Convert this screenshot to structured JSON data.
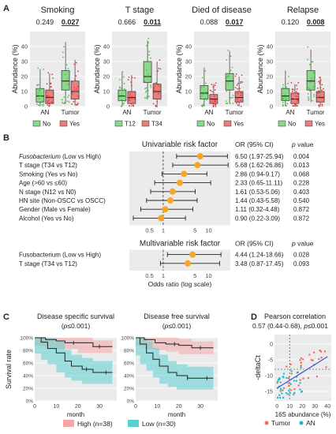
{
  "panel_labels": {
    "A": "A",
    "B": "B",
    "C": "C",
    "D": "D"
  },
  "colors": {
    "no": "#4CC44C",
    "yes": "#E03A3A",
    "orange": "#F5A623",
    "high": "#F4A6A6",
    "low": "#5CCFD0",
    "tumor": "#F06A5A",
    "an": "#1FB8C3",
    "fit": "#4655D8",
    "panel_bg": "#EBEBEB"
  },
  "box_panels": [
    {
      "title": "Smoking",
      "p_an": "0.249",
      "p_tumor": "0.027",
      "legend": [
        "No",
        "Yes"
      ],
      "groups": {
        "an_no": [
          0,
          3,
          7,
          12,
          25
        ],
        "an_yes": [
          0,
          2,
          6,
          11,
          22
        ],
        "tumor_no": [
          2,
          11,
          17,
          24,
          43
        ],
        "tumor_yes": [
          1,
          5,
          10,
          17,
          31
        ]
      }
    },
    {
      "title": "T stage",
      "p_an": "0.666",
      "p_tumor": "0.011",
      "legend": [
        "T12",
        "T34"
      ],
      "groups": {
        "an_no": [
          0,
          4,
          7,
          11,
          22
        ],
        "an_yes": [
          0,
          2,
          6,
          10,
          21
        ],
        "tumor_no": [
          5,
          16,
          20,
          30,
          44
        ],
        "tumor_yes": [
          0,
          5,
          10,
          15,
          30
        ]
      }
    },
    {
      "title": "Died of disease",
      "p_an": "0.088",
      "p_tumor": "0.017",
      "legend": [
        "No",
        "Yes"
      ],
      "groups": {
        "an_no": [
          0,
          5,
          9,
          14,
          26
        ],
        "an_yes": [
          0,
          2,
          5,
          8,
          15
        ],
        "tumor_no": [
          2,
          11,
          17,
          22,
          37
        ],
        "tumor_yes": [
          0,
          3,
          6,
          10,
          20
        ]
      }
    },
    {
      "title": "Relapse",
      "p_an": "0.120",
      "p_tumor": "0.008",
      "legend": [
        "No",
        "Yes"
      ],
      "groups": {
        "an_no": [
          0,
          4,
          7,
          12,
          24
        ],
        "an_yes": [
          0,
          2,
          5,
          9,
          15
        ],
        "tumor_no": [
          3,
          11,
          17,
          24,
          38
        ],
        "tumor_yes": [
          0,
          3,
          6,
          10,
          20
        ]
      }
    }
  ],
  "box_axis": {
    "ylabel": "Abundance (%)",
    "yticks": [
      0,
      10,
      20,
      30,
      40
    ],
    "ylim": [
      0,
      50
    ],
    "xcats": [
      "AN",
      "Tumor"
    ]
  },
  "forest": {
    "uni_title": "Univariable risk factor",
    "multi_title": "Multivariable risk factor",
    "col_or": "OR (95% CI)",
    "col_p_italic": "p",
    "col_p_rest": " value",
    "xticks": [
      "0.5",
      "1",
      "5",
      "10"
    ],
    "xlabel": "Odds ratio (log scale)",
    "uni": [
      {
        "label_italic": "Fusobacterium",
        "label_rest": " (Low vs High)",
        "or": 6.5,
        "lo": 1.97,
        "hi": 25.94,
        "or_text": "6.50 (1.97-25.94)",
        "p": "0.004"
      },
      {
        "label_italic": "",
        "label_rest": "T stage (T34 vs T12)",
        "or": 5.68,
        "lo": 1.62,
        "hi": 26.86,
        "or_text": "5.68 (1.62-26.86)",
        "p": "0.013"
      },
      {
        "label_italic": "",
        "label_rest": "Smoking (Yes vs No)",
        "or": 2.86,
        "lo": 0.94,
        "hi": 9.17,
        "or_text": "2.86 (0.94-9.17)",
        "p": "0.068"
      },
      {
        "label_italic": "",
        "label_rest": "Age (>60 vs ≤60)",
        "or": 2.33,
        "lo": 0.65,
        "hi": 11.11,
        "or_text": "2.33 (0.65-11.11)",
        "p": "0.228"
      },
      {
        "label_italic": "",
        "label_rest": "N stage (N12 vs N0)",
        "or": 1.61,
        "lo": 0.53,
        "hi": 5.06,
        "or_text": "1.61 (0.53-5.06)",
        "p": "0.403"
      },
      {
        "label_italic": "",
        "label_rest": "HN site (Non-OSCC vs OSCC)",
        "or": 1.44,
        "lo": 0.43,
        "hi": 5.58,
        "or_text": "1.44 (0.43-5.58)",
        "p": "0.540"
      },
      {
        "label_italic": "",
        "label_rest": "Gender (Male vs Female)",
        "or": 1.11,
        "lo": 0.32,
        "hi": 4.48,
        "or_text": "1.11 (0.32-4.48)",
        "p": "0.872"
      },
      {
        "label_italic": "",
        "label_rest": "Alcohol (Yes vs No)",
        "or": 0.9,
        "lo": 0.22,
        "hi": 3.09,
        "or_text": "0.90 (0.22-3.09)",
        "p": "0.872"
      }
    ],
    "multi": [
      {
        "label": "Fusobacterium (Low vs High)",
        "or": 4.44,
        "lo": 1.24,
        "hi": 18.66,
        "or_text": "4.44 (1.24-18.66)",
        "p": "0.028"
      },
      {
        "label": "T stage (T34 vs T12)",
        "or": 3.48,
        "lo": 0.87,
        "hi": 17.45,
        "or_text": "3.48 (0.87-17.45)",
        "p": "0.093"
      }
    ]
  },
  "survival": {
    "panels": [
      {
        "title": "Disease specific survival",
        "p_italic": "p",
        "p_rest": "≤0.001",
        "high": [
          [
            0,
            1.0
          ],
          [
            5,
            0.97
          ],
          [
            10,
            0.95
          ],
          [
            14,
            0.92
          ],
          [
            20,
            0.92
          ],
          [
            27,
            0.86
          ],
          [
            36,
            0.86
          ]
        ],
        "low": [
          [
            0,
            1.0
          ],
          [
            3,
            0.93
          ],
          [
            6,
            0.83
          ],
          [
            10,
            0.76
          ],
          [
            14,
            0.63
          ],
          [
            17,
            0.55
          ],
          [
            22,
            0.5
          ],
          [
            27,
            0.45
          ],
          [
            36,
            0.45
          ]
        ]
      },
      {
        "title": "Disease free survival",
        "p_italic": "p",
        "p_rest": "≤0.001",
        "high": [
          [
            0,
            1.0
          ],
          [
            4,
            0.97
          ],
          [
            9,
            0.92
          ],
          [
            14,
            0.9
          ],
          [
            20,
            0.88
          ],
          [
            26,
            0.84
          ],
          [
            36,
            0.84
          ]
        ],
        "low": [
          [
            0,
            1.0
          ],
          [
            2,
            0.9
          ],
          [
            5,
            0.76
          ],
          [
            8,
            0.66
          ],
          [
            11,
            0.55
          ],
          [
            15,
            0.45
          ],
          [
            19,
            0.4
          ],
          [
            24,
            0.36
          ],
          [
            36,
            0.36
          ]
        ]
      }
    ],
    "ylabel": "Survival rate",
    "xlabel": "month",
    "yticks": [
      "0%",
      "20%",
      "40%",
      "60%",
      "80%",
      "100%"
    ],
    "xticks": [
      "0",
      "10",
      "20",
      "30"
    ],
    "legend_high": "High (n=38)",
    "legend_low": "Low (n=30)"
  },
  "correlation": {
    "title": "Pearson correlation",
    "subtitle_pre": "0.57 (0.44-0.68), ",
    "subtitle_p": "p",
    "subtitle_post": "≤0.001",
    "ylabel": "-deltaCt",
    "xlabel": "16S abundance (%)",
    "yticks": [
      "0",
      "-5",
      "-10",
      "-15"
    ],
    "xticks": [
      "0",
      "10",
      "20",
      "30",
      "40"
    ],
    "legend": [
      "Tumor",
      "AN"
    ]
  },
  "chart_data": [
    {
      "type": "bar",
      "title": "Smoking",
      "ylabel": "Abundance (%)",
      "categories": [
        "AN",
        "Tumor"
      ],
      "series": [
        {
          "name": "No",
          "values": [
            7,
            17
          ]
        },
        {
          "name": "Yes",
          "values": [
            6,
            10
          ]
        }
      ],
      "ylim": [
        0,
        50
      ]
    },
    {
      "type": "bar",
      "title": "T stage",
      "ylabel": "Abundance (%)",
      "categories": [
        "AN",
        "Tumor"
      ],
      "series": [
        {
          "name": "T12",
          "values": [
            7,
            20
          ]
        },
        {
          "name": "T34",
          "values": [
            6,
            10
          ]
        }
      ],
      "ylim": [
        0,
        50
      ]
    },
    {
      "type": "bar",
      "title": "Died of disease",
      "ylabel": "Abundance (%)",
      "categories": [
        "AN",
        "Tumor"
      ],
      "series": [
        {
          "name": "No",
          "values": [
            9,
            17
          ]
        },
        {
          "name": "Yes",
          "values": [
            5,
            6
          ]
        }
      ],
      "ylim": [
        0,
        50
      ]
    },
    {
      "type": "bar",
      "title": "Relapse",
      "ylabel": "Abundance (%)",
      "categories": [
        "AN",
        "Tumor"
      ],
      "series": [
        {
          "name": "No",
          "values": [
            7,
            17
          ]
        },
        {
          "name": "Yes",
          "values": [
            5,
            6
          ]
        }
      ],
      "ylim": [
        0,
        50
      ]
    },
    {
      "type": "scatter",
      "title": "Univariable risk factor",
      "xlabel": "Odds ratio (log scale)",
      "values": [
        6.5,
        5.68,
        2.86,
        2.33,
        1.61,
        1.44,
        1.11,
        0.9
      ]
    },
    {
      "type": "scatter",
      "title": "Multivariable risk factor",
      "xlabel": "Odds ratio (log scale)",
      "values": [
        4.44,
        3.48
      ]
    },
    {
      "type": "line",
      "title": "Disease specific survival",
      "xlabel": "month",
      "ylabel": "Survival rate",
      "series": [
        {
          "name": "High (n=38)",
          "values": [
            1.0,
            0.92,
            0.86
          ]
        },
        {
          "name": "Low (n=30)",
          "values": [
            1.0,
            0.63,
            0.45
          ]
        }
      ]
    },
    {
      "type": "line",
      "title": "Disease free survival",
      "xlabel": "month",
      "ylabel": "Survival rate",
      "series": [
        {
          "name": "High (n=38)",
          "values": [
            1.0,
            0.9,
            0.84
          ]
        },
        {
          "name": "Low (n=30)",
          "values": [
            1.0,
            0.45,
            0.36
          ]
        }
      ]
    },
    {
      "type": "scatter",
      "title": "Pearson correlation",
      "xlabel": "16S abundance (%)",
      "ylabel": "-deltaCt",
      "series": [
        {
          "name": "Tumor"
        },
        {
          "name": "AN"
        }
      ]
    }
  ]
}
